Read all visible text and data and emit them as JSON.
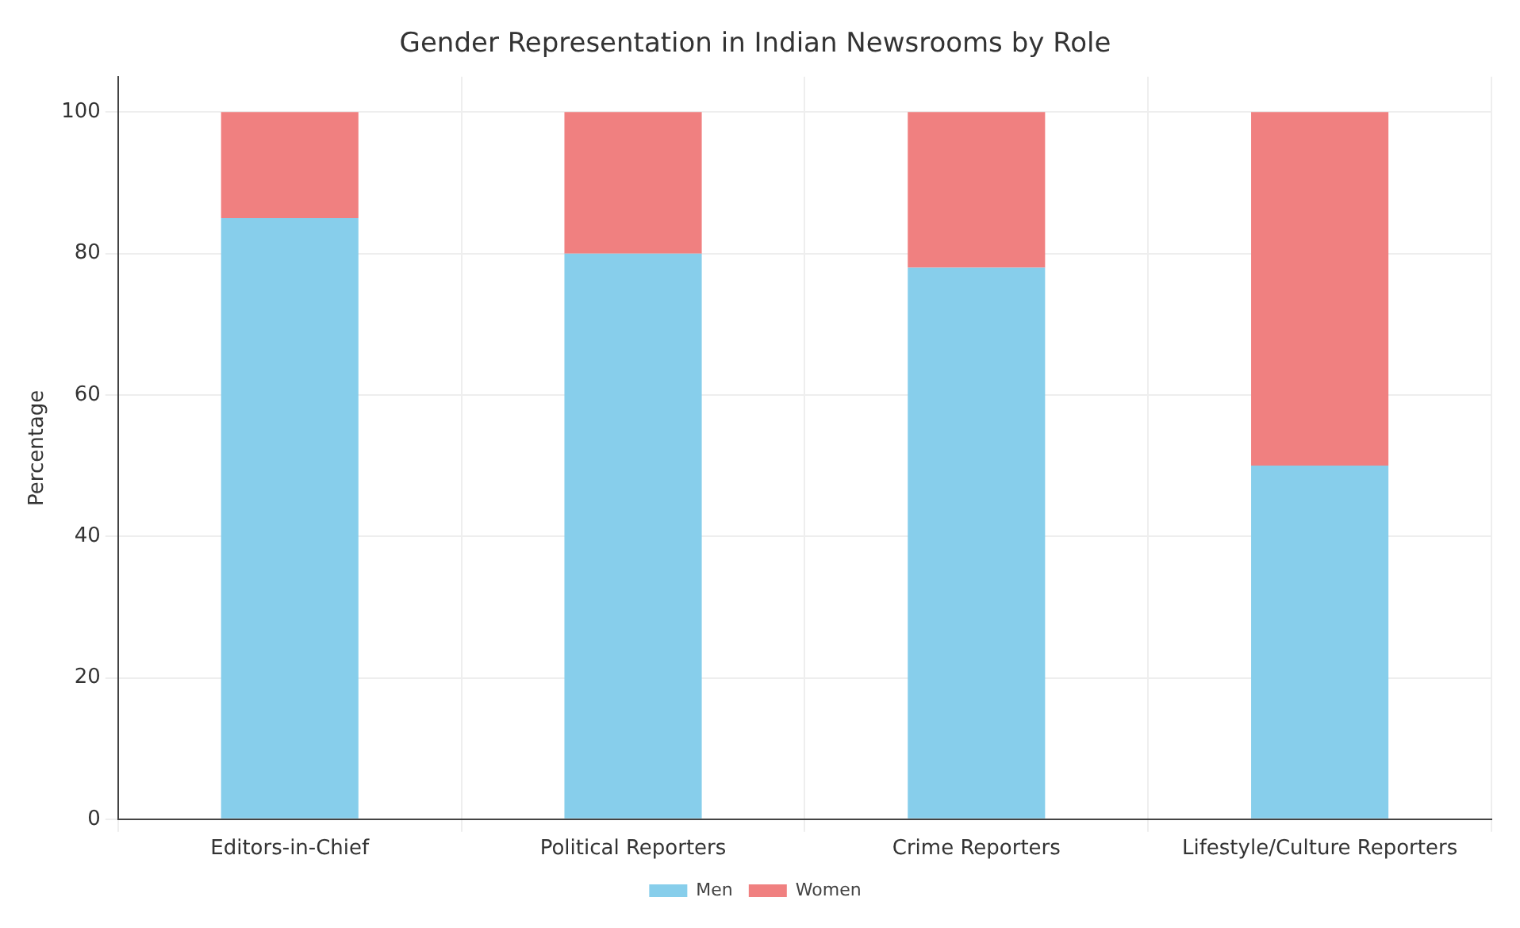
{
  "chart_data": {
    "type": "bar",
    "title": "Gender Representation in Indian Newsrooms by Role",
    "ylabel": "Percentage",
    "categories": [
      "Editors-in-Chief",
      "Political Reporters",
      "Crime Reporters",
      "Lifestyle/Culture Reporters"
    ],
    "series": [
      {
        "name": "Men",
        "color": "#87ceeb",
        "values": [
          85,
          80,
          78,
          50
        ]
      },
      {
        "name": "Women",
        "color": "#f08080",
        "values": [
          15,
          20,
          22,
          50
        ]
      }
    ],
    "stacked": true,
    "ylim": [
      0,
      105
    ],
    "yticks": [
      0,
      20,
      40,
      60,
      80,
      100
    ],
    "grid": true,
    "legend": "bottom"
  }
}
